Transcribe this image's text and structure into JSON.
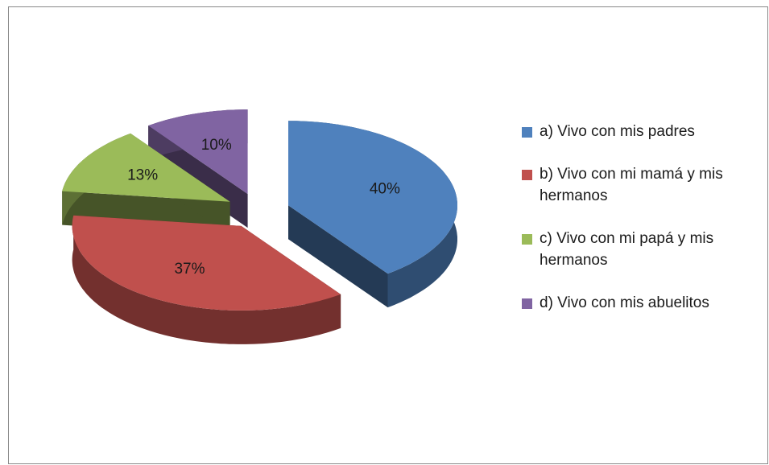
{
  "chart_data": {
    "type": "pie3d",
    "categories": [
      "a) Vivo con mis padres",
      "b) Vivo con mi mamá y mis hermanos",
      "c) Vivo con mi papá y mis hermanos",
      "d) Vivo con mis abuelitos"
    ],
    "values": [
      40,
      37,
      13,
      10
    ],
    "value_labels": [
      "40%",
      "37%",
      "13%",
      "10%"
    ],
    "colors": [
      "#4f81bd",
      "#c0504d",
      "#9bbb59",
      "#8064a2"
    ],
    "legend": "right"
  }
}
